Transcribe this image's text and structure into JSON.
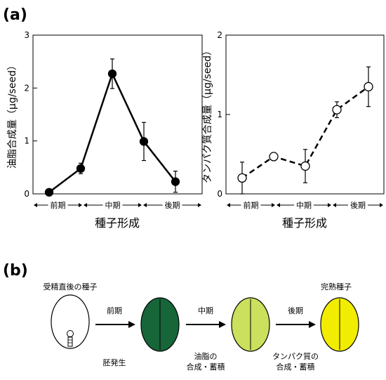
{
  "figure": {
    "panel_a_label": "(a)",
    "panel_b_label": "(b)"
  },
  "chart_data": [
    {
      "type": "line",
      "ylabel": "油脂合成量（µg/seed）",
      "xlabel": "種子形成",
      "phases": [
        "前期",
        "中期",
        "後期"
      ],
      "ylim": [
        0,
        3
      ],
      "yticks": [
        "0",
        "1",
        "2",
        "3"
      ],
      "x": [
        1,
        2,
        3,
        4,
        5
      ],
      "values": [
        0.03,
        0.48,
        2.27,
        0.99,
        0.23
      ],
      "err": [
        0.0,
        0.1,
        0.28,
        0.36,
        0.2
      ],
      "marker": "filled",
      "line_style": "solid"
    },
    {
      "type": "line",
      "ylabel": "タンパク質合成量（µg/seed）",
      "xlabel": "種子形成",
      "phases": [
        "前期",
        "中期",
        "後期"
      ],
      "ylim": [
        0,
        2
      ],
      "yticks": [
        "0",
        "1",
        "2"
      ],
      "x": [
        1,
        2,
        3,
        4,
        5
      ],
      "values": [
        0.2,
        0.47,
        0.35,
        1.06,
        1.35
      ],
      "err": [
        0.2,
        0.05,
        0.21,
        0.1,
        0.25
      ],
      "marker": "open",
      "line_style": "dashed"
    }
  ],
  "diagram": {
    "start_label": "受精直後の種子",
    "end_label": "完熟種子",
    "arrow1_top": "前期",
    "arrow1_bottom": "胚発生",
    "arrow2_top": "中期",
    "arrow2_bottom_1": "油脂の",
    "arrow2_bottom_2": "合成・蓄積",
    "arrow3_top": "後期",
    "arrow3_bottom_1": "タンパク質の",
    "arrow3_bottom_2": "合成・蓄積",
    "colors": {
      "early_seed": "#ffffff",
      "seed_dark_green": "#17663a",
      "seed_light_green": "#cbe05c",
      "seed_yellow": "#f2ec00"
    }
  }
}
